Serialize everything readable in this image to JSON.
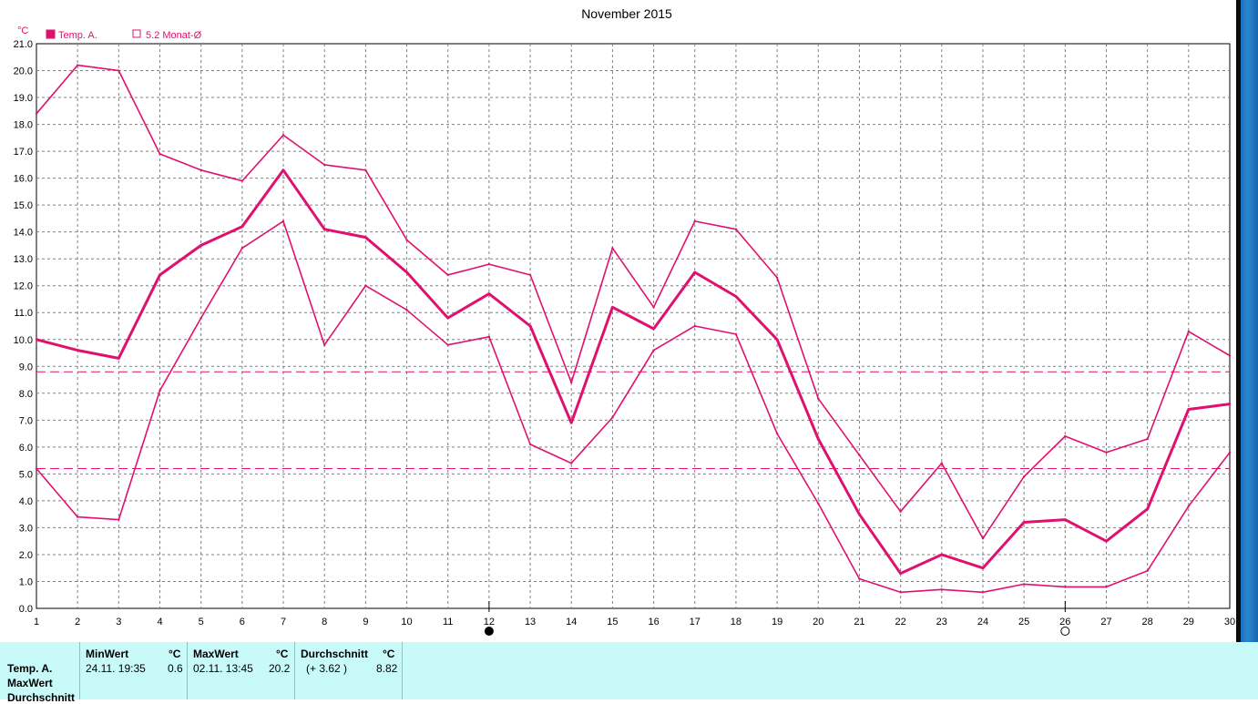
{
  "title": "November 2015",
  "unit_label": "°C",
  "legend": [
    {
      "label": "Temp. A.",
      "filled": true
    },
    {
      "label": "5.2 Monat-Ø",
      "filled": false
    }
  ],
  "colors": {
    "series": "#e0106e",
    "grid": "#808080",
    "stats_bg": "#c8fafa"
  },
  "chart_data": {
    "type": "line",
    "title": "November 2015",
    "ylabel": "°C",
    "xlabel": "",
    "x": [
      1,
      2,
      3,
      4,
      5,
      6,
      7,
      8,
      9,
      10,
      11,
      12,
      13,
      14,
      15,
      16,
      17,
      18,
      19,
      20,
      21,
      22,
      23,
      24,
      25,
      26,
      27,
      28,
      29,
      30
    ],
    "ylim": [
      0,
      21
    ],
    "xlim": [
      1,
      30
    ],
    "yticks": [
      "0.0",
      "1.0",
      "2.0",
      "3.0",
      "4.0",
      "5.0",
      "6.0",
      "7.0",
      "8.0",
      "9.0",
      "10.0",
      "11.0",
      "12.0",
      "13.0",
      "14.0",
      "15.0",
      "16.0",
      "17.0",
      "18.0",
      "19.0",
      "20.0",
      "21.0"
    ],
    "grid": true,
    "legend_position": "top-left",
    "series": [
      {
        "name": "Temp. A.",
        "style": "bold",
        "values": [
          10.0,
          9.6,
          9.3,
          12.4,
          13.5,
          14.2,
          16.3,
          14.1,
          13.8,
          12.5,
          10.8,
          11.7,
          10.5,
          6.9,
          11.2,
          10.4,
          12.5,
          11.6,
          10.0,
          6.3,
          3.5,
          1.3,
          2.0,
          1.5,
          3.2,
          3.3,
          2.5,
          3.7,
          7.4,
          7.6
        ]
      },
      {
        "style": "thin",
        "values": [
          18.4,
          20.2,
          20.0,
          16.9,
          16.3,
          15.9,
          17.6,
          16.5,
          16.3,
          13.7,
          12.4,
          12.8,
          12.4,
          8.4,
          13.4,
          11.2,
          14.4,
          14.1,
          12.3,
          7.8,
          5.7,
          3.6,
          5.4,
          2.6,
          4.9,
          6.4,
          5.8,
          6.3,
          10.3,
          9.4
        ]
      },
      {
        "style": "thin",
        "values": [
          5.2,
          3.4,
          3.3,
          8.1,
          10.8,
          13.4,
          14.4,
          9.8,
          12.0,
          11.1,
          9.8,
          10.1,
          6.1,
          5.4,
          7.1,
          9.6,
          10.5,
          10.2,
          6.5,
          3.9,
          1.1,
          0.6,
          0.7,
          0.6,
          0.9,
          0.8,
          0.8,
          1.4,
          3.8,
          5.8
        ]
      }
    ],
    "reference_lines": [
      8.8,
      5.2
    ],
    "moon_markers": [
      {
        "x": 12,
        "phase": "new"
      },
      {
        "x": 26,
        "phase": "full"
      }
    ]
  },
  "stats": {
    "row_labels": [
      "Temp. A.",
      "MaxWert",
      "Durchschnitt"
    ],
    "min": {
      "header": "MinWert",
      "unit": "°C",
      "date": "24.11.  19:35",
      "value": "0.6"
    },
    "max": {
      "header": "MaxWert",
      "unit": "°C",
      "date": "02.11.  13:45",
      "value": "20.2"
    },
    "avg": {
      "header": "Durchschnitt",
      "unit": "°C",
      "delta": "(+ 3.62 )",
      "value": "8.82"
    }
  }
}
